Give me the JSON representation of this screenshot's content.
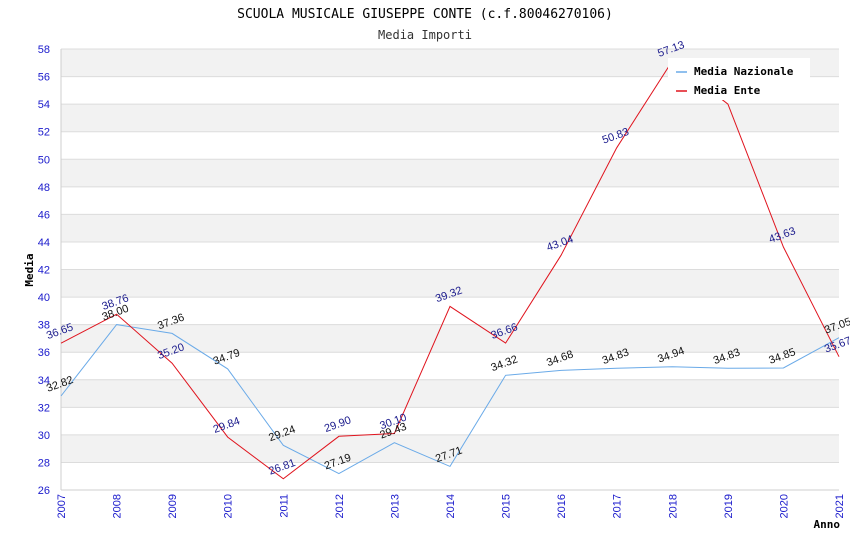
{
  "chart_data": {
    "type": "line",
    "title": "SCUOLA MUSICALE GIUSEPPE CONTE (c.f.80046270106)",
    "subtitle": "Media Importi",
    "xlabel": "Anno",
    "ylabel": "Media",
    "ylim": [
      26,
      58
    ],
    "ytick_step": 2,
    "grid": true,
    "legend_position": "top-right",
    "x": [
      "2007",
      "2008",
      "2009",
      "2010",
      "2011",
      "2012",
      "2013",
      "2014",
      "2015",
      "2016",
      "2017",
      "2018",
      "2019",
      "2020",
      "2021"
    ],
    "series": [
      {
        "name": "Media Nazionale",
        "color": "#6aaae8",
        "label_color": "#111111",
        "values": [
          32.82,
          38.0,
          37.36,
          34.79,
          29.24,
          27.19,
          29.43,
          27.71,
          34.32,
          34.68,
          34.83,
          34.94,
          34.83,
          34.85,
          37.05
        ]
      },
      {
        "name": "Media Ente",
        "color": "#e0141e",
        "label_color": "#1a1a8c",
        "values": [
          36.65,
          38.76,
          35.2,
          29.84,
          26.81,
          29.9,
          30.1,
          39.32,
          36.66,
          43.04,
          50.83,
          57.13,
          54.0,
          43.63,
          35.67
        ]
      }
    ]
  }
}
